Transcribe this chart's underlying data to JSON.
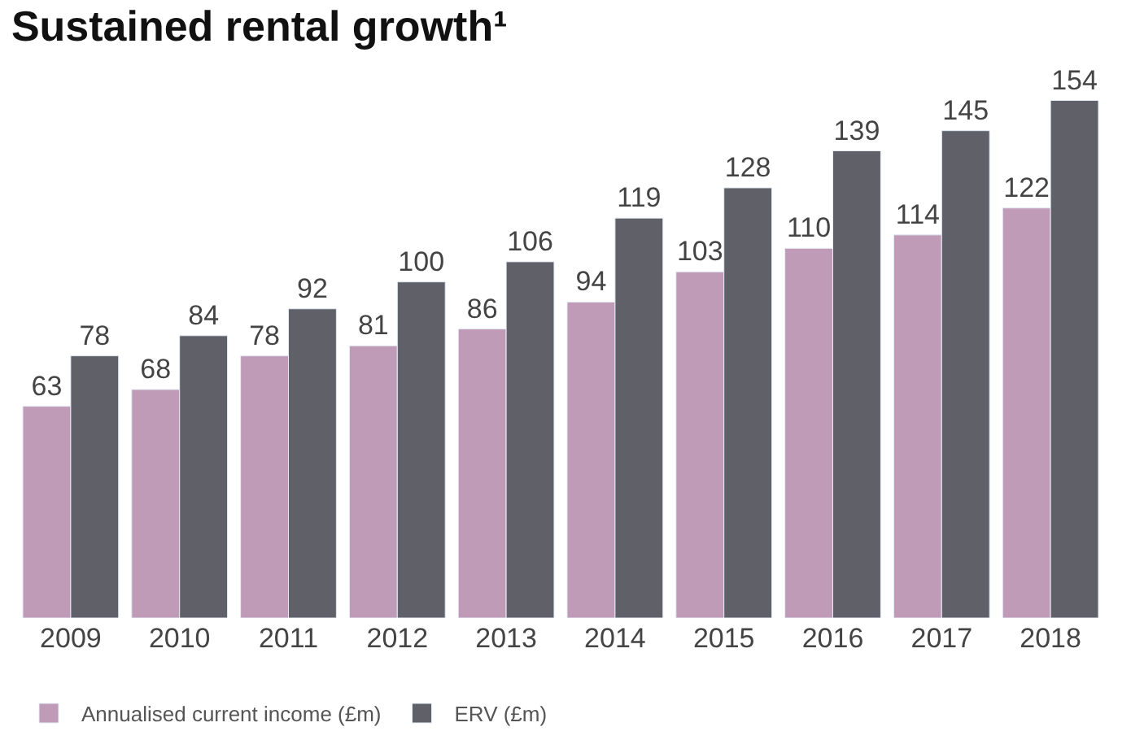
{
  "chart_data": {
    "type": "bar",
    "title": "Sustained rental growth¹",
    "categories": [
      "2009",
      "2010",
      "2011",
      "2012",
      "2013",
      "2014",
      "2015",
      "2016",
      "2017",
      "2018"
    ],
    "series": [
      {
        "name": "Annualised current income (£m)",
        "color": "#c09bb8",
        "values": [
          63,
          68,
          78,
          81,
          86,
          94,
          103,
          110,
          114,
          122
        ]
      },
      {
        "name": "ERV (£m)",
        "color": "#5f6068",
        "values": [
          78,
          84,
          92,
          100,
          106,
          119,
          128,
          139,
          145,
          154
        ]
      }
    ],
    "data_labels": true,
    "legend": "bottom left"
  }
}
